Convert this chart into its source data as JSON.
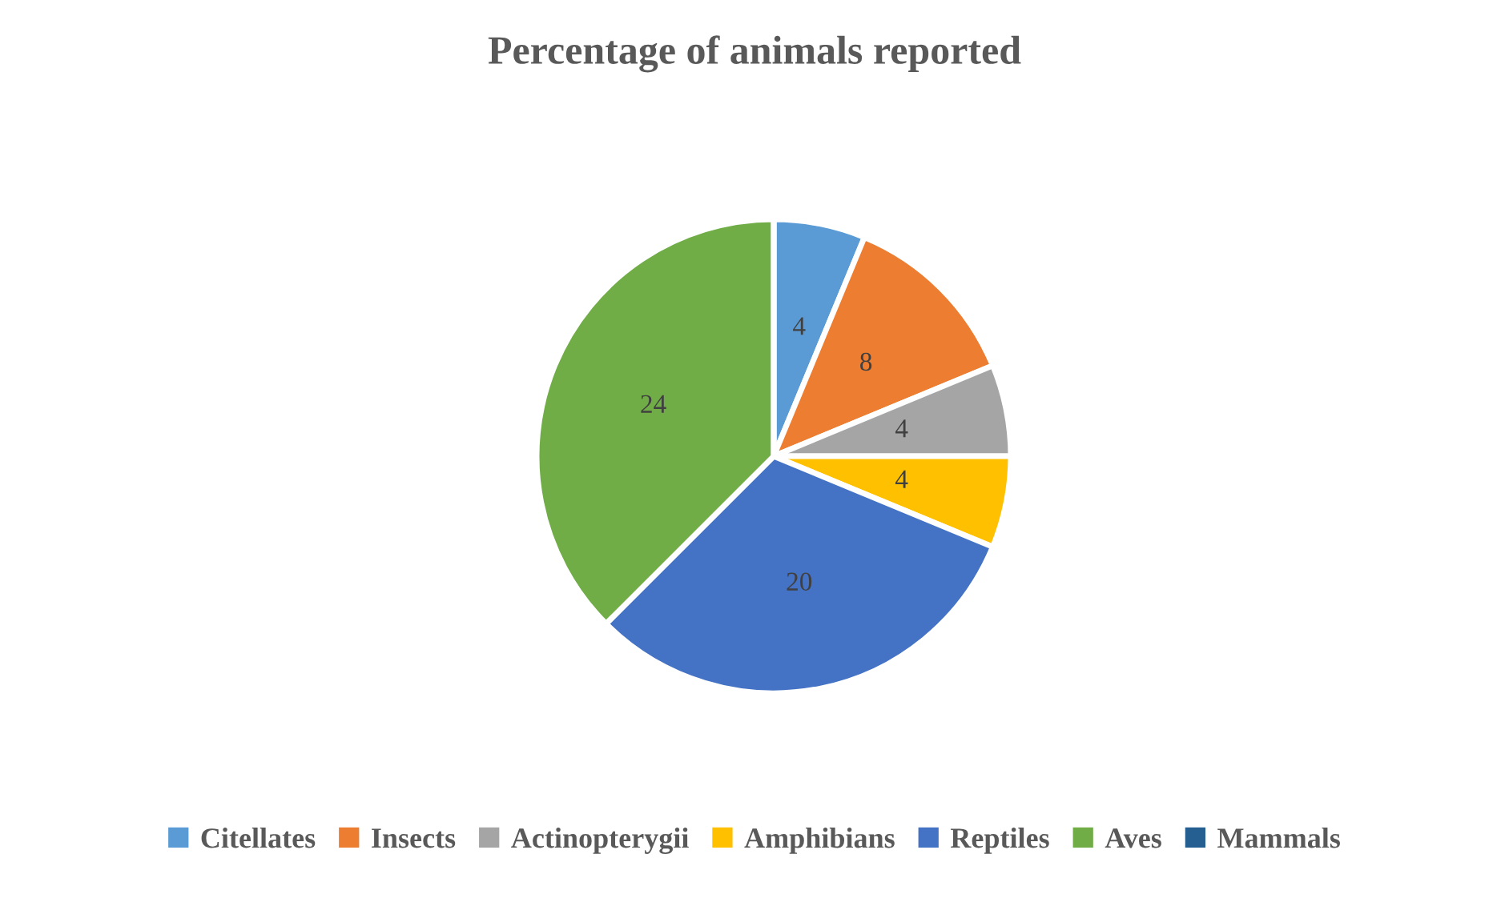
{
  "chart_data": {
    "type": "pie",
    "title": "Percentage of animals reported",
    "categories": [
      "Citellates",
      "Insects",
      "Actinopterygii",
      "Amphibians",
      "Reptiles",
      "Aves",
      "Mammals"
    ],
    "values": [
      4,
      8,
      4,
      4,
      20,
      24,
      0
    ],
    "colors": [
      "#5b9bd5",
      "#ed7d31",
      "#a5a5a5",
      "#ffc000",
      "#4472c4",
      "#70ad47",
      "#255e91"
    ],
    "value_labels": [
      "4",
      "8",
      "4",
      "4",
      "20",
      "24",
      null
    ],
    "legend": "bottom"
  }
}
